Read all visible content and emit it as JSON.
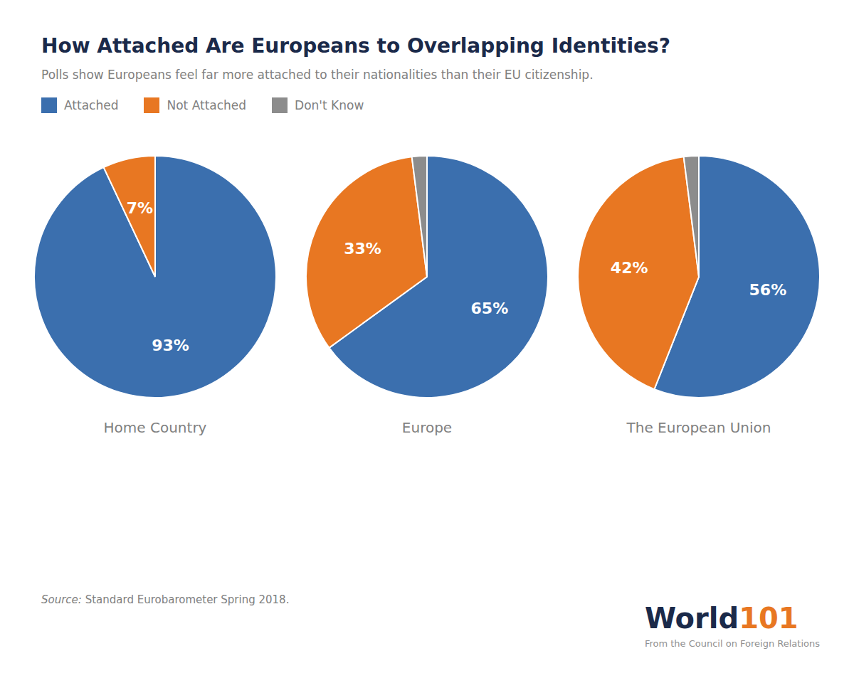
{
  "title": "How Attached Are Europeans to Overlapping Identities?",
  "subtitle": "Polls show Europeans feel far more attached to their nationalities than their EU citizenship.",
  "legend": "top-left",
  "annotations": [
    "Source:",
    " Standard Eurobarometer Spring 2018.",
    "World",
    "101",
    "From the Council on Foreign Relations"
  ],
  "chart_data": [
    {
      "type": "pie",
      "title": "Home Country",
      "categories": [
        "Attached",
        "Not Attached",
        "Don't Know"
      ],
      "values": [
        93,
        7,
        0
      ],
      "value_labels": [
        "93%",
        "7%",
        null
      ],
      "data_labels": true,
      "colors": [
        "#3B6FAE",
        "#E87722",
        "#8C8C8C"
      ]
    },
    {
      "type": "pie",
      "title": "Europe",
      "categories": [
        "Attached",
        "Not Attached",
        "Don't Know"
      ],
      "values": [
        65,
        33,
        2
      ],
      "value_labels": [
        "65%",
        "33%",
        null
      ],
      "data_labels": true,
      "colors": [
        "#3B6FAE",
        "#E87722",
        "#8C8C8C"
      ]
    },
    {
      "type": "pie",
      "title": "The European Union",
      "categories": [
        "Attached",
        "Not Attached",
        "Don't Know"
      ],
      "values": [
        56,
        42,
        2
      ],
      "value_labels": [
        "56%",
        "42%",
        null
      ],
      "data_labels": true,
      "colors": [
        "#3B6FAE",
        "#E87722",
        "#8C8C8C"
      ]
    }
  ]
}
